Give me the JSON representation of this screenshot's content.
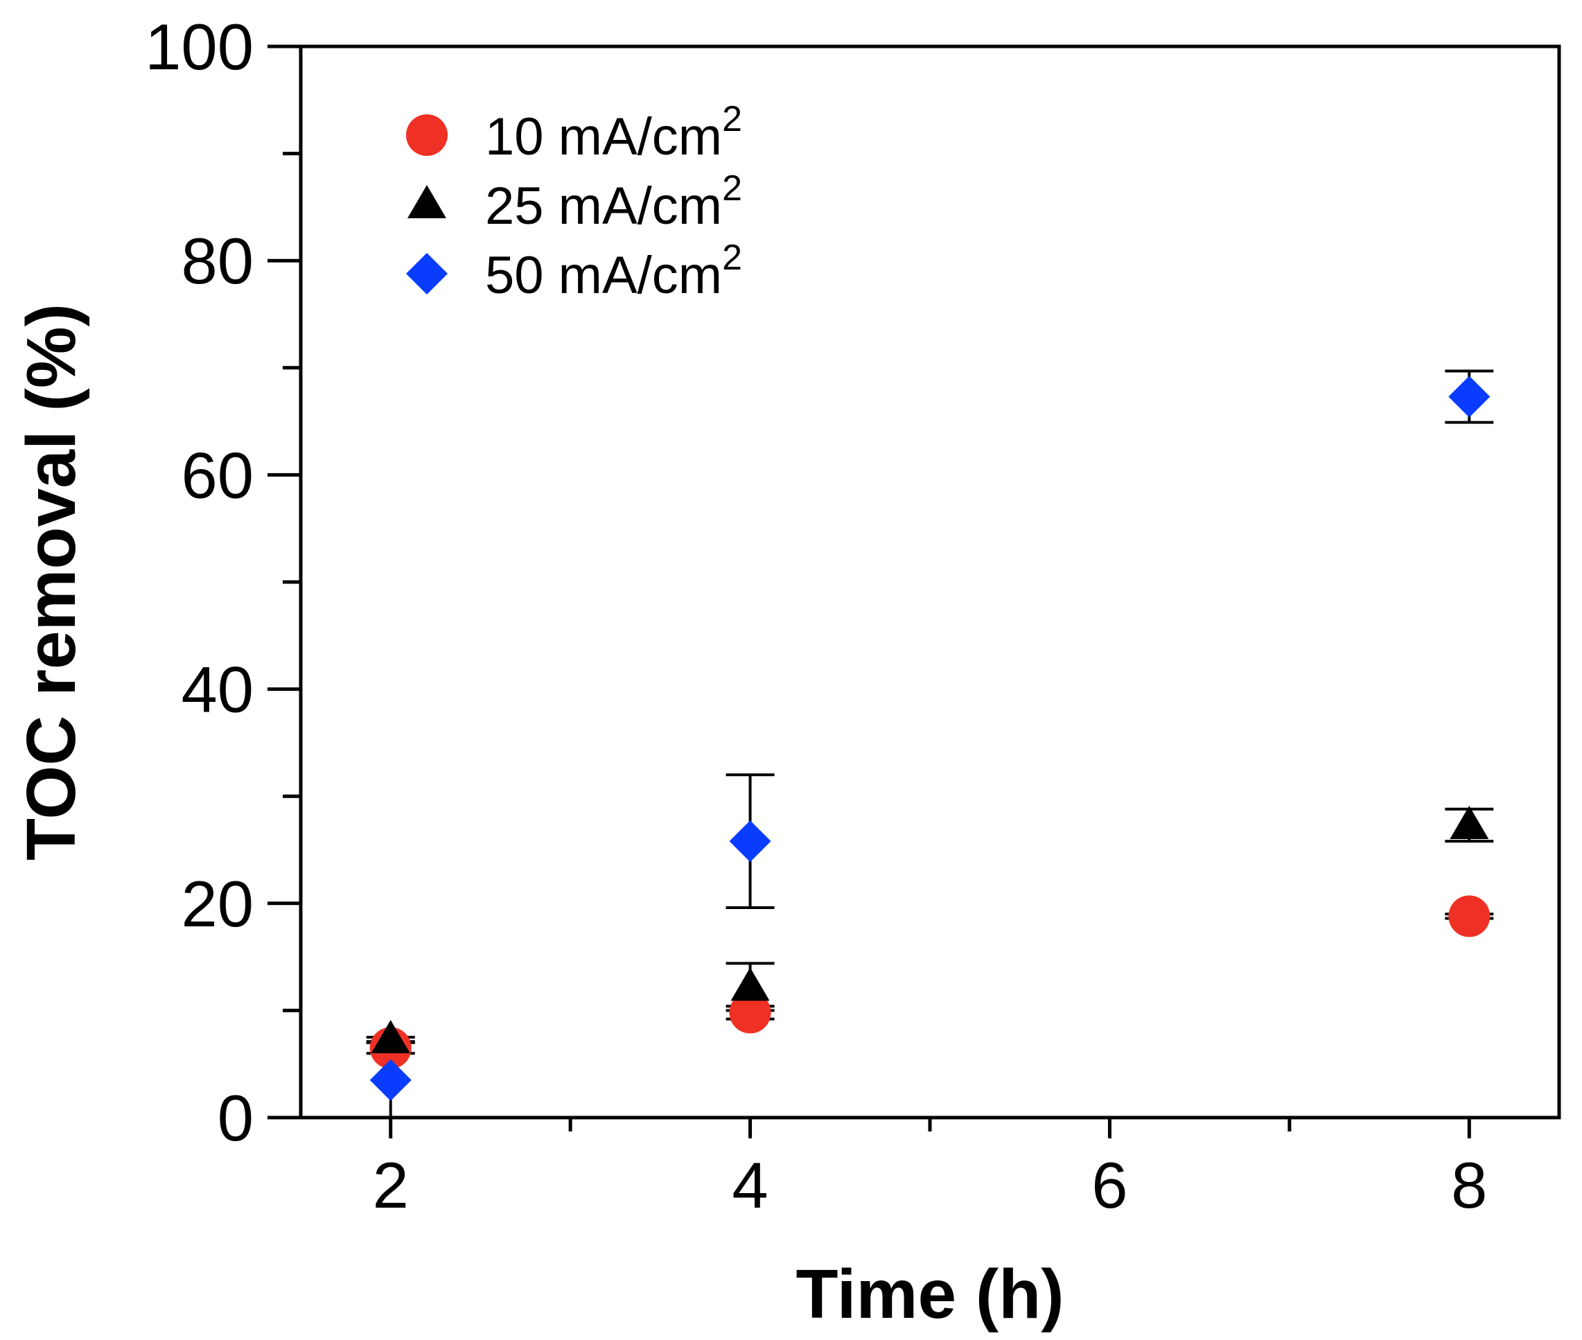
{
  "chart_data": {
    "type": "scatter",
    "title": "",
    "xlabel": "Time (h)",
    "ylabel": "TOC removal (%)",
    "xlim": [
      1.5,
      8.5
    ],
    "ylim": [
      0,
      100
    ],
    "x_major_ticks": [
      2,
      4,
      6,
      8
    ],
    "x_minor_ticks": [
      3,
      5,
      7
    ],
    "y_major_ticks": [
      0,
      20,
      40,
      60,
      80,
      100
    ],
    "y_minor_ticks": [
      10,
      30,
      50,
      70,
      90
    ],
    "x_tick_labels": [
      "2",
      "4",
      "6",
      "8"
    ],
    "y_tick_labels": [
      "0",
      "20",
      "40",
      "60",
      "80",
      "100"
    ],
    "grid": false,
    "legend_position": "top-left",
    "series": [
      {
        "name": "10 mA/cm",
        "name_superscript": "2",
        "marker": "circle",
        "color": "#ee3124",
        "x": [
          2,
          4,
          8
        ],
        "y": [
          6.5,
          9.8,
          18.8
        ],
        "error": [
          0.5,
          0.6,
          0.2
        ]
      },
      {
        "name": "25 mA/cm",
        "name_superscript": "2",
        "marker": "triangle",
        "color": "#000000",
        "x": [
          2,
          4,
          8
        ],
        "y": [
          7.3,
          12.2,
          27.3
        ],
        "error": [
          0.2,
          2.2,
          1.5
        ]
      },
      {
        "name": "50 mA/cm",
        "name_superscript": "2",
        "marker": "diamond",
        "color": "#0a3cff",
        "x": [
          2,
          4,
          8
        ],
        "y": [
          3.5,
          25.8,
          67.3
        ],
        "error": [
          3.5,
          6.2,
          2.4
        ]
      }
    ]
  }
}
